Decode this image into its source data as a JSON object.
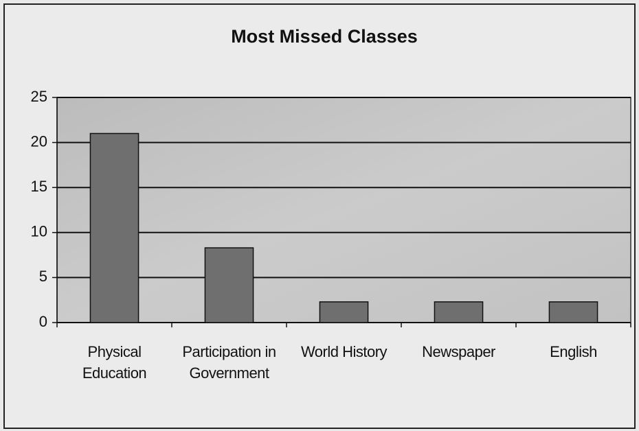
{
  "chart_data": {
    "type": "bar",
    "title": "Most Missed Classes",
    "categories": [
      "Physical Education",
      "Participation in Government",
      "World History",
      "Newspaper",
      "English"
    ],
    "values": [
      21,
      8.3,
      2.3,
      2.3,
      2.3
    ],
    "color": "#6f6f6f",
    "ylim": [
      0,
      25
    ],
    "yticks": [
      0,
      5,
      10,
      15,
      20,
      25
    ],
    "grid": true
  }
}
